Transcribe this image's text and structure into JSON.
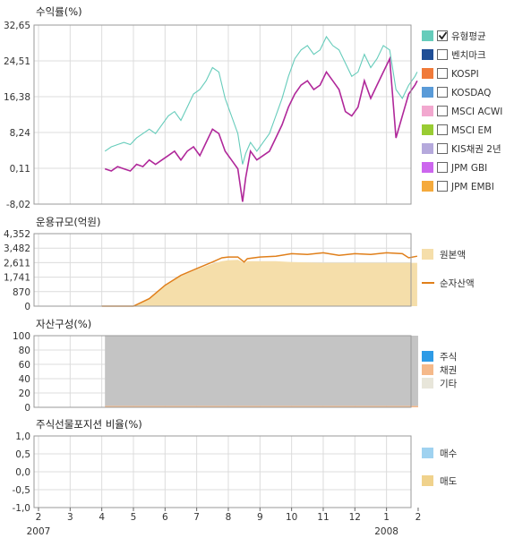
{
  "chart_data": [
    {
      "type": "line",
      "title": "수익률(%)",
      "y_ticks": [
        "32,65",
        "24,51",
        "16,38",
        "8,24",
        "0,11",
        "-8,02"
      ],
      "ylim": [
        -8.02,
        32.65
      ],
      "legend_position": "right",
      "legend": [
        {
          "label": "유형평균",
          "color": "#66ccbb",
          "checked": true
        },
        {
          "label": "벤치마크",
          "color": "#1f4e96",
          "checked": false
        },
        {
          "label": "KOSPI",
          "color": "#f07a3a",
          "checked": false
        },
        {
          "label": "KOSDAQ",
          "color": "#5a9bd8",
          "checked": false
        },
        {
          "label": "MSCI ACWI",
          "color": "#f2a8cf",
          "checked": false
        },
        {
          "label": "MSCI EM",
          "color": "#99cc33",
          "checked": false
        },
        {
          "label": "KIS채권 2년",
          "color": "#b5a9dc",
          "checked": false
        },
        {
          "label": "JPM GBI",
          "color": "#cc66ee",
          "checked": false
        },
        {
          "label": "JPM EMBI",
          "color": "#f5aa3c",
          "checked": false
        }
      ],
      "x": [
        4.1,
        4.3,
        4.5,
        4.7,
        4.9,
        5.1,
        5.3,
        5.5,
        5.7,
        5.9,
        6.1,
        6.3,
        6.5,
        6.7,
        6.9,
        7.1,
        7.3,
        7.5,
        7.7,
        7.9,
        8.1,
        8.3,
        8.45,
        8.55,
        8.7,
        8.9,
        9.1,
        9.3,
        9.5,
        9.7,
        9.9,
        10.1,
        10.3,
        10.5,
        10.7,
        10.9,
        11.1,
        11.3,
        11.5,
        11.7,
        11.9,
        12.1,
        12.3,
        12.5,
        12.7,
        12.9,
        13.1,
        13.3,
        13.5,
        13.7,
        13.9,
        13.97
      ],
      "series": [
        {
          "name": "유형평균",
          "color": "#66ccbb",
          "values": [
            4.0,
            5.0,
            5.5,
            6.0,
            5.5,
            7.0,
            8.0,
            9.0,
            8.0,
            10.0,
            12.0,
            13.0,
            11.0,
            14.0,
            17.0,
            18.0,
            20.0,
            23.0,
            22.0,
            16.0,
            12.0,
            8.0,
            1.0,
            3.5,
            6.0,
            4.0,
            6.0,
            8.0,
            12.0,
            16.0,
            21.0,
            25.0,
            27.0,
            28.0,
            26.0,
            27.0,
            30.0,
            28.0,
            27.0,
            24.0,
            21.0,
            22.0,
            26.0,
            23.0,
            25.0,
            28.0,
            27.0,
            18.0,
            16.0,
            19.0,
            21.0,
            22.0
          ]
        },
        {
          "name": "",
          "color": "#b0289a",
          "values": [
            0.0,
            -0.5,
            0.5,
            0.0,
            -0.5,
            1.0,
            0.5,
            2.0,
            1.0,
            2.0,
            3.0,
            4.0,
            2.0,
            4.0,
            5.0,
            3.0,
            6.0,
            9.0,
            8.0,
            4.0,
            2.0,
            0.0,
            -7.5,
            -2.0,
            4.0,
            2.0,
            3.0,
            4.0,
            7.0,
            10.0,
            14.0,
            17.0,
            19.0,
            20.0,
            18.0,
            19.0,
            22.0,
            20.0,
            18.0,
            13.0,
            12.0,
            14.0,
            20.0,
            16.0,
            19.0,
            22.0,
            25.0,
            7.0,
            12.0,
            17.0,
            19.0,
            20.0
          ]
        }
      ]
    },
    {
      "type": "area",
      "title": "운용규모(억원)",
      "y_ticks": [
        "4,352",
        "3,482",
        "2,611",
        "1,741",
        "870",
        "0"
      ],
      "ylim": [
        0,
        4352
      ],
      "legend_position": "right",
      "legend": [
        {
          "label": "원본액",
          "color": "#f5deaa",
          "shape": "box"
        },
        {
          "label": "순자산액",
          "color": "#e07f1a",
          "shape": "line"
        }
      ],
      "x": [
        4.0,
        4.5,
        4.6,
        5.0,
        5.5,
        6.0,
        6.5,
        7.0,
        7.5,
        7.8,
        8.0,
        8.3,
        8.5,
        8.6,
        9.0,
        9.5,
        10.0,
        10.5,
        11.0,
        11.5,
        12.0,
        12.5,
        13.0,
        13.5,
        13.7,
        13.97
      ],
      "series": [
        {
          "name": "원본액",
          "color": "#f5deaa",
          "values": [
            0,
            0,
            0,
            0,
            450,
            1200,
            1800,
            2200,
            2550,
            2700,
            2750,
            2780,
            2600,
            2700,
            2700,
            2700,
            2650,
            2620,
            2600,
            2600,
            2600,
            2600,
            2600,
            2600,
            2600,
            2600
          ]
        },
        {
          "name": "순자산액",
          "color": "#e07f1a",
          "values": [
            0,
            0,
            0,
            0,
            450,
            1250,
            1850,
            2250,
            2650,
            2900,
            2950,
            2950,
            2650,
            2850,
            2950,
            3000,
            3150,
            3100,
            3200,
            3050,
            3150,
            3100,
            3200,
            3150,
            2900,
            3000
          ]
        }
      ]
    },
    {
      "type": "area",
      "title": "자산구성(%)",
      "y_ticks": [
        "100",
        "80",
        "60",
        "40",
        "20",
        "0"
      ],
      "ylim": [
        0,
        100
      ],
      "legend_position": "right",
      "legend": [
        {
          "label": "주식",
          "color": "#2e9be6"
        },
        {
          "label": "채권",
          "color": "#f5b98a"
        },
        {
          "label": "기타",
          "color": "#e8e6da"
        }
      ],
      "x_start": 4.1,
      "x_end": 14.0,
      "series": [
        {
          "name": "주식",
          "color": "#2e9be6",
          "values": [
            0,
            0
          ]
        },
        {
          "name": "채권",
          "color": "#f5b98a",
          "values": [
            2,
            2
          ]
        },
        {
          "name": "",
          "color": "#c4c4c4",
          "values": [
            98,
            98
          ]
        }
      ]
    },
    {
      "type": "bar",
      "title": "주식선물포지션 비율(%)",
      "y_ticks": [
        "1,0",
        "0,5",
        "0,0",
        "-0,5",
        "-1,0"
      ],
      "ylim": [
        -1.0,
        1.0
      ],
      "legend_position": "right",
      "legend": [
        {
          "label": "매수",
          "color": "#9fd2f0"
        },
        {
          "label": "매도",
          "color": "#f0d28c"
        }
      ],
      "series": [
        {
          "name": "매수",
          "values": []
        },
        {
          "name": "매도",
          "values": []
        }
      ]
    }
  ],
  "x_axis": {
    "ticks": [
      "2",
      "3",
      "4",
      "5",
      "6",
      "7",
      "8",
      "9",
      "10",
      "11",
      "12",
      "1",
      "2"
    ],
    "year_labels": [
      {
        "label": "2007",
        "tick_index": 0
      },
      {
        "label": "2008",
        "tick_index": 11
      }
    ]
  }
}
